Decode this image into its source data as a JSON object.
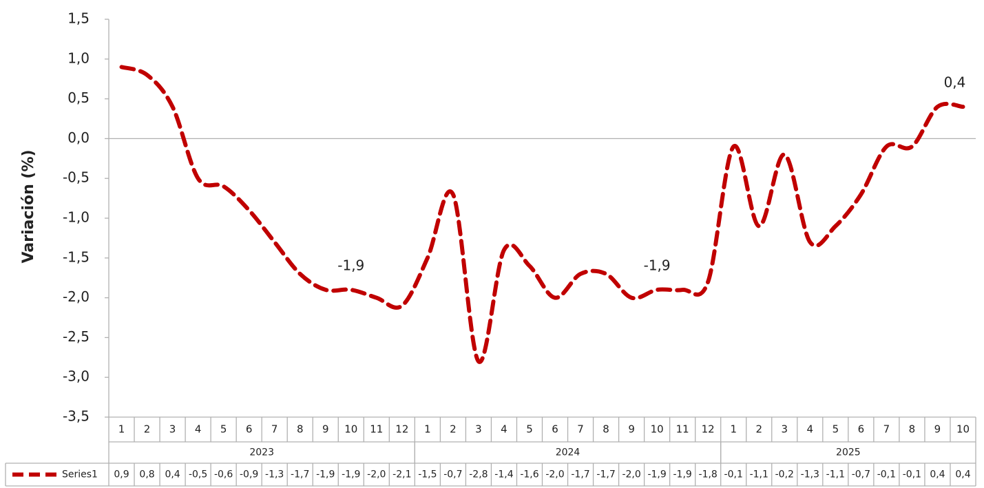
{
  "chart_data": {
    "type": "line",
    "y_axis_label": "Variación (%)",
    "categories": [
      "1",
      "2",
      "3",
      "4",
      "5",
      "6",
      "7",
      "8",
      "9",
      "10",
      "11",
      "12",
      "1",
      "2",
      "3",
      "4",
      "5",
      "6",
      "7",
      "8",
      "9",
      "10",
      "11",
      "12",
      "1",
      "2",
      "3",
      "4",
      "5",
      "6",
      "7",
      "8",
      "9",
      "10"
    ],
    "groups": [
      {
        "name": "2023",
        "count": 12
      },
      {
        "name": "2024",
        "count": 12
      },
      {
        "name": "2025",
        "count": 10
      }
    ],
    "series": [
      {
        "name": "Series1",
        "color": "#c00000",
        "values": [
          0.9,
          0.8,
          0.4,
          -0.5,
          -0.6,
          -0.9,
          -1.3,
          -1.7,
          -1.9,
          -1.9,
          -2.0,
          -2.1,
          -1.5,
          -0.7,
          -2.8,
          -1.4,
          -1.6,
          -2.0,
          -1.7,
          -1.7,
          -2.0,
          -1.9,
          -1.9,
          -1.8,
          -0.1,
          -1.1,
          -0.2,
          -1.3,
          -1.1,
          -0.7,
          -0.1,
          -0.1,
          0.4,
          0.4
        ],
        "value_labels": [
          "0,9",
          "0,8",
          "0,4",
          "-0,5",
          "-0,6",
          "-0,9",
          "-1,3",
          "-1,7",
          "-1,9",
          "-1,9",
          "-2,0",
          "-2,1",
          "-1,5",
          "-0,7",
          "-2,8",
          "-1,4",
          "-1,6",
          "-2,0",
          "-1,7",
          "-1,7",
          "-2,0",
          "-1,9",
          "-1,9",
          "-1,8",
          "-0,1",
          "-1,1",
          "-0,2",
          "-1,3",
          "-1,1",
          "-0,7",
          "-0,1",
          "-0,1",
          "0,4",
          "0,4"
        ]
      }
    ],
    "data_labels_at": [
      9,
      21,
      33
    ],
    "ylim": [
      -3.5,
      1.5
    ],
    "yticks": [
      {
        "value": 1.5,
        "label": "1,5"
      },
      {
        "value": 1.0,
        "label": "1,0"
      },
      {
        "value": 0.5,
        "label": "0,5"
      },
      {
        "value": 0.0,
        "label": "0,0"
      },
      {
        "value": -0.5,
        "label": "-0,5"
      },
      {
        "value": -1.0,
        "label": "-1,0"
      },
      {
        "value": -1.5,
        "label": "-1,5"
      },
      {
        "value": -2.0,
        "label": "-2,0"
      },
      {
        "value": -2.5,
        "label": "-2,5"
      },
      {
        "value": -3.0,
        "label": "-3,0"
      },
      {
        "value": -3.5,
        "label": "-3,5"
      }
    ],
    "data_table": true
  }
}
